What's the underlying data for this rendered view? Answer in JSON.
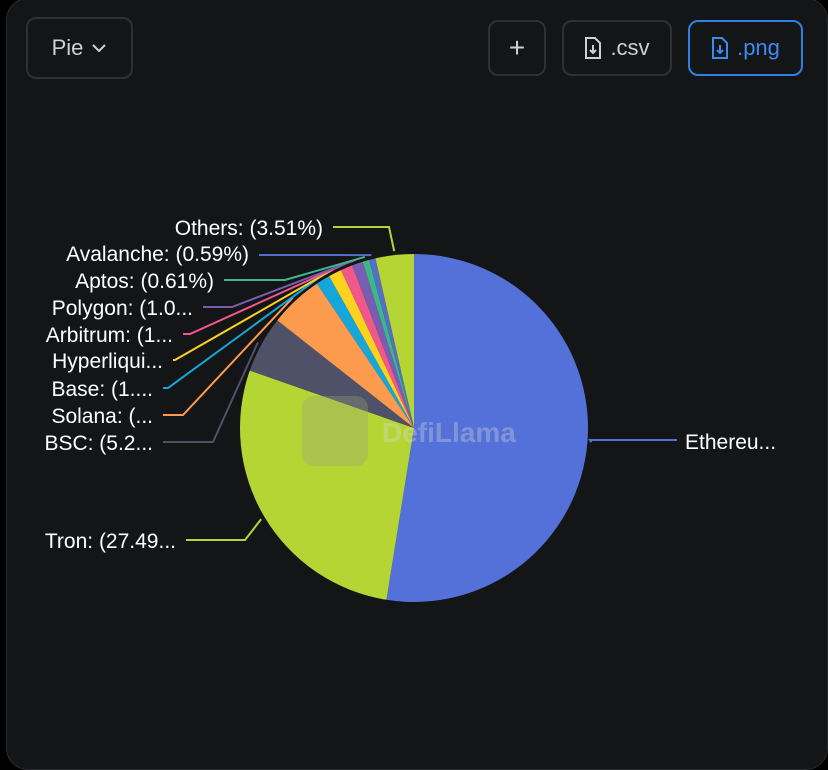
{
  "toolbar": {
    "chart_type": "Pie",
    "add_label": "+",
    "csv_label": ".csv",
    "png_label": ".png"
  },
  "watermark": "DefiLlama",
  "chart_data": {
    "type": "pie",
    "title": "",
    "slices": [
      {
        "name": "Ethereum",
        "label": "Ethereu...",
        "value": 51.9,
        "color": "#5470d9"
      },
      {
        "name": "Tron",
        "label": "Tron: (27.49...",
        "value": 27.49,
        "color": "#b5d535"
      },
      {
        "name": "BSC",
        "label": "BSC: (5.2...",
        "value": 5.2,
        "color": "#4f5169"
      },
      {
        "name": "Solana",
        "label": "Solana: (...",
        "value": 4.9,
        "color": "#fc9a4e"
      },
      {
        "name": "Base",
        "label": "Base: (1....",
        "value": 1.3,
        "color": "#15a7dc"
      },
      {
        "name": "Hyperliquid",
        "label": "Hyperliqui...",
        "value": 1.2,
        "color": "#fcd21e"
      },
      {
        "name": "Arbitrum",
        "label": "Arbitrum: (1...",
        "value": 1.1,
        "color": "#f0588a"
      },
      {
        "name": "Polygon",
        "label": "Polygon: (1.0...",
        "value": 1.0,
        "color": "#7b5cb3"
      },
      {
        "name": "Aptos",
        "label": "Aptos: (0.61%)",
        "value": 0.61,
        "color": "#3bb78b"
      },
      {
        "name": "Avalanche",
        "label": "Avalanche: (0.59%)",
        "value": 0.59,
        "color": "#5470c6"
      },
      {
        "name": "Others",
        "label": "Others: (3.51%)",
        "value": 3.51,
        "color": "#b5d535"
      }
    ]
  }
}
